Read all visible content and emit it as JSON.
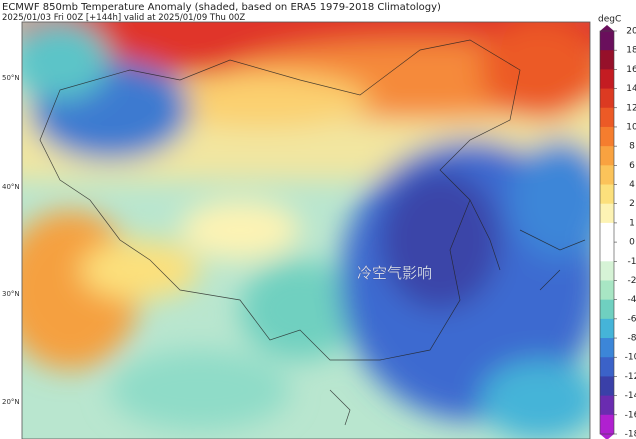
{
  "header": {
    "title": "ECMWF 850mb Temperature Anomaly (shaded, based on ERA5 1979-2018 Climatology)",
    "subtitle": "2025/01/03 Fri 00Z [+144h] valid at 2025/01/09 Thu 00Z"
  },
  "map": {
    "lat_labels": [
      "50°N",
      "40°N",
      "30°N",
      "20°N"
    ],
    "annotation": "冷空气影响"
  },
  "colorbar": {
    "unit": "degC",
    "ticks": [
      20,
      18,
      16,
      14,
      12,
      10,
      8,
      6,
      4,
      2,
      1,
      0,
      -1,
      -2,
      -4,
      -6,
      -8,
      -10,
      -12,
      -14,
      -16,
      -18
    ],
    "colors": [
      "#6a0f5c",
      "#96102a",
      "#c41c22",
      "#dc3a22",
      "#ec5a26",
      "#f57d2e",
      "#f9a240",
      "#fbc35a",
      "#fce07c",
      "#fdf3b4",
      "#ffffff",
      "#ffffff",
      "#d6f3d6",
      "#a8e6c4",
      "#6fd0c0",
      "#45b4d8",
      "#3c86d8",
      "#3b62c8",
      "#3a40a8",
      "#6a2cb0",
      "#b020d0"
    ]
  }
}
